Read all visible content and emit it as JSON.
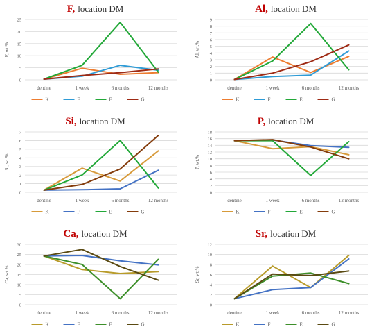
{
  "chart_data": [
    {
      "type": "line",
      "element": "F",
      "location": "location DM",
      "ylabel": "F, wt.%",
      "categories": [
        "dentine",
        "1 week",
        "6 months",
        "12 months"
      ],
      "ylim": [
        0,
        25
      ],
      "yticks": [
        0,
        5,
        10,
        15,
        20,
        25
      ],
      "grid": true,
      "legend": "bottom",
      "series": [
        {
          "name": "K",
          "color": "#ED7D31",
          "values": [
            0.3,
            4.8,
            2.3,
            3.0
          ]
        },
        {
          "name": "F",
          "color": "#2E9BD6",
          "values": [
            0.3,
            1.5,
            6.0,
            4.0
          ]
        },
        {
          "name": "E",
          "color": "#22A838",
          "values": [
            0.3,
            6.0,
            23.8,
            3.2
          ]
        },
        {
          "name": "G",
          "color": "#9E2A14",
          "values": [
            0.3,
            1.8,
            3.0,
            4.5
          ]
        }
      ]
    },
    {
      "type": "line",
      "element": "Al",
      "location": "location DM",
      "ylabel": "Al, wt.%",
      "categories": [
        "dentine",
        "1 week",
        "6 months",
        "12 months"
      ],
      "ylim": [
        0,
        9
      ],
      "yticks": [
        0,
        1,
        2,
        3,
        4,
        5,
        6,
        7,
        8,
        9
      ],
      "grid": true,
      "legend": "bottom",
      "series": [
        {
          "name": "K",
          "color": "#ED7D31",
          "values": [
            0.05,
            3.4,
            1.1,
            3.5
          ]
        },
        {
          "name": "F",
          "color": "#2E9BD6",
          "values": [
            0.05,
            0.5,
            0.7,
            4.3
          ]
        },
        {
          "name": "E",
          "color": "#22A838",
          "values": [
            0.05,
            2.8,
            8.4,
            1.5
          ]
        },
        {
          "name": "G",
          "color": "#9E2A14",
          "values": [
            0.05,
            1.0,
            2.7,
            5.2
          ]
        }
      ]
    },
    {
      "type": "line",
      "element": "Si",
      "location": "location DM",
      "ylabel": "Si, wt.%",
      "categories": [
        "dentine",
        "1 week",
        "6 months",
        "12 months"
      ],
      "ylim": [
        0,
        7
      ],
      "yticks": [
        0,
        1,
        2,
        3,
        4,
        5,
        6,
        7
      ],
      "grid": true,
      "legend": "bottom",
      "series": [
        {
          "name": "K",
          "color": "#D79A3A",
          "values": [
            0.25,
            2.8,
            1.3,
            4.8
          ]
        },
        {
          "name": "F",
          "color": "#4472C4",
          "values": [
            0.25,
            0.3,
            0.4,
            2.55
          ]
        },
        {
          "name": "E",
          "color": "#22A838",
          "values": [
            0.25,
            2.0,
            6.0,
            0.5
          ]
        },
        {
          "name": "G",
          "color": "#843C0C",
          "values": [
            0.25,
            0.9,
            2.7,
            6.6
          ]
        }
      ]
    },
    {
      "type": "line",
      "element": "P",
      "location": "location DM",
      "ylabel": "P, wt.%",
      "categories": [
        "dentine",
        "1 week",
        "6 months",
        "12 months"
      ],
      "ylim": [
        0,
        18
      ],
      "yticks": [
        0,
        2,
        4,
        6,
        8,
        10,
        12,
        14,
        16,
        18
      ],
      "grid": true,
      "legend": "bottom",
      "series": [
        {
          "name": "K",
          "color": "#D79A3A",
          "values": [
            15.4,
            13.0,
            13.6,
            11.2
          ]
        },
        {
          "name": "F",
          "color": "#4472C4",
          "values": [
            15.4,
            15.6,
            13.9,
            13.4
          ]
        },
        {
          "name": "E",
          "color": "#22A838",
          "values": [
            15.4,
            15.4,
            5.0,
            15.1
          ]
        },
        {
          "name": "G",
          "color": "#843C0C",
          "values": [
            15.4,
            15.7,
            13.5,
            10.0
          ]
        }
      ]
    },
    {
      "type": "line",
      "element": "Ca",
      "location": "location DM",
      "ylabel": "Ca, wt.%",
      "categories": [
        "dentine",
        "1 week",
        "6 months",
        "12 months"
      ],
      "ylim": [
        0,
        30
      ],
      "yticks": [
        0,
        5,
        10,
        15,
        20,
        25,
        30
      ],
      "grid": true,
      "legend": "bottom",
      "series": [
        {
          "name": "K",
          "color": "#B89B2A",
          "values": [
            24.2,
            17.5,
            15.5,
            16.5
          ]
        },
        {
          "name": "F",
          "color": "#4472C4",
          "values": [
            24.2,
            24.5,
            21.8,
            19.8
          ]
        },
        {
          "name": "E",
          "color": "#3D8F2A",
          "values": [
            24.2,
            20.0,
            3.0,
            22.6
          ]
        },
        {
          "name": "G",
          "color": "#5A4A12",
          "values": [
            24.2,
            27.5,
            19.0,
            12.2
          ]
        }
      ]
    },
    {
      "type": "line",
      "element": "Sr",
      "location": "location DM",
      "ylabel": "Sr, wt.%",
      "categories": [
        "dentine",
        "1 week",
        "6 months",
        "12 months"
      ],
      "ylim": [
        0,
        12
      ],
      "yticks": [
        0,
        2,
        4,
        6,
        8,
        10,
        12
      ],
      "grid": true,
      "legend": "bottom",
      "series": [
        {
          "name": "K",
          "color": "#B89B2A",
          "values": [
            1.2,
            7.7,
            3.4,
            9.8
          ]
        },
        {
          "name": "F",
          "color": "#4472C4",
          "values": [
            1.2,
            3.0,
            3.4,
            9.1
          ]
        },
        {
          "name": "E",
          "color": "#3D8F2A",
          "values": [
            1.2,
            5.7,
            6.3,
            4.2
          ]
        },
        {
          "name": "G",
          "color": "#5A4A12",
          "values": [
            1.2,
            6.1,
            5.8,
            6.7
          ]
        }
      ]
    }
  ],
  "title_accent": "#C00000"
}
